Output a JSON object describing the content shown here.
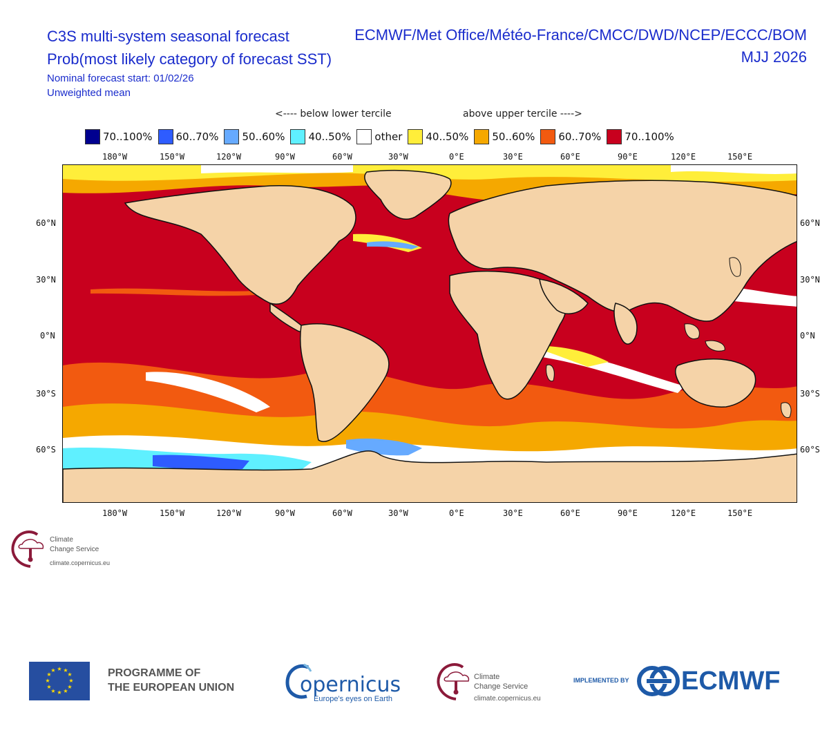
{
  "header": {
    "title_line1": "C3S multi-system seasonal forecast",
    "title_line2": "Prob(most likely category of forecast SST)",
    "forecast_start": "Nominal forecast start: 01/02/26",
    "mean_type": "Unweighted mean",
    "systems": "ECMWF/Met Office/Météo-France/CMCC/DWD/NCEP/ECCC/BOM",
    "season": "MJJ 2026"
  },
  "tercile_labels": {
    "below": "<---- below lower tercile",
    "above": "above upper tercile ---->"
  },
  "legend": [
    {
      "label": "70..100%",
      "color": "#00008f"
    },
    {
      "label": "60..70%",
      "color": "#2e5cff"
    },
    {
      "label": "50..60%",
      "color": "#66aaff"
    },
    {
      "label": "40..50%",
      "color": "#5ff0ff"
    },
    {
      "label": "other",
      "color": "#ffffff"
    },
    {
      "label": "40..50%",
      "color": "#ffee3a"
    },
    {
      "label": "50..60%",
      "color": "#f5a800"
    },
    {
      "label": "60..70%",
      "color": "#f25a10"
    },
    {
      "label": "70..100%",
      "color": "#c8001e"
    }
  ],
  "map": {
    "land_color": "#f5d3a8",
    "lon_ticks": [
      "180°W",
      "150°W",
      "120°W",
      "90°W",
      "60°W",
      "30°W",
      "0°E",
      "30°E",
      "60°E",
      "90°E",
      "120°E",
      "150°E"
    ],
    "lat_ticks": [
      "60°N",
      "30°N",
      "0°N",
      "30°S",
      "60°S"
    ]
  },
  "branding": {
    "c3s_name_line1": "Climate",
    "c3s_name_line2": "Change Service",
    "c3s_url": "climate.copernicus.eu",
    "eu_text_line1": "PROGRAMME OF",
    "eu_text_line2": "THE EUROPEAN UNION",
    "copernicus_name": "opernicus",
    "copernicus_tagline": "Europe's eyes on Earth",
    "implemented_by": "IMPLEMENTED BY",
    "ecmwf_name": "ECMWF"
  }
}
